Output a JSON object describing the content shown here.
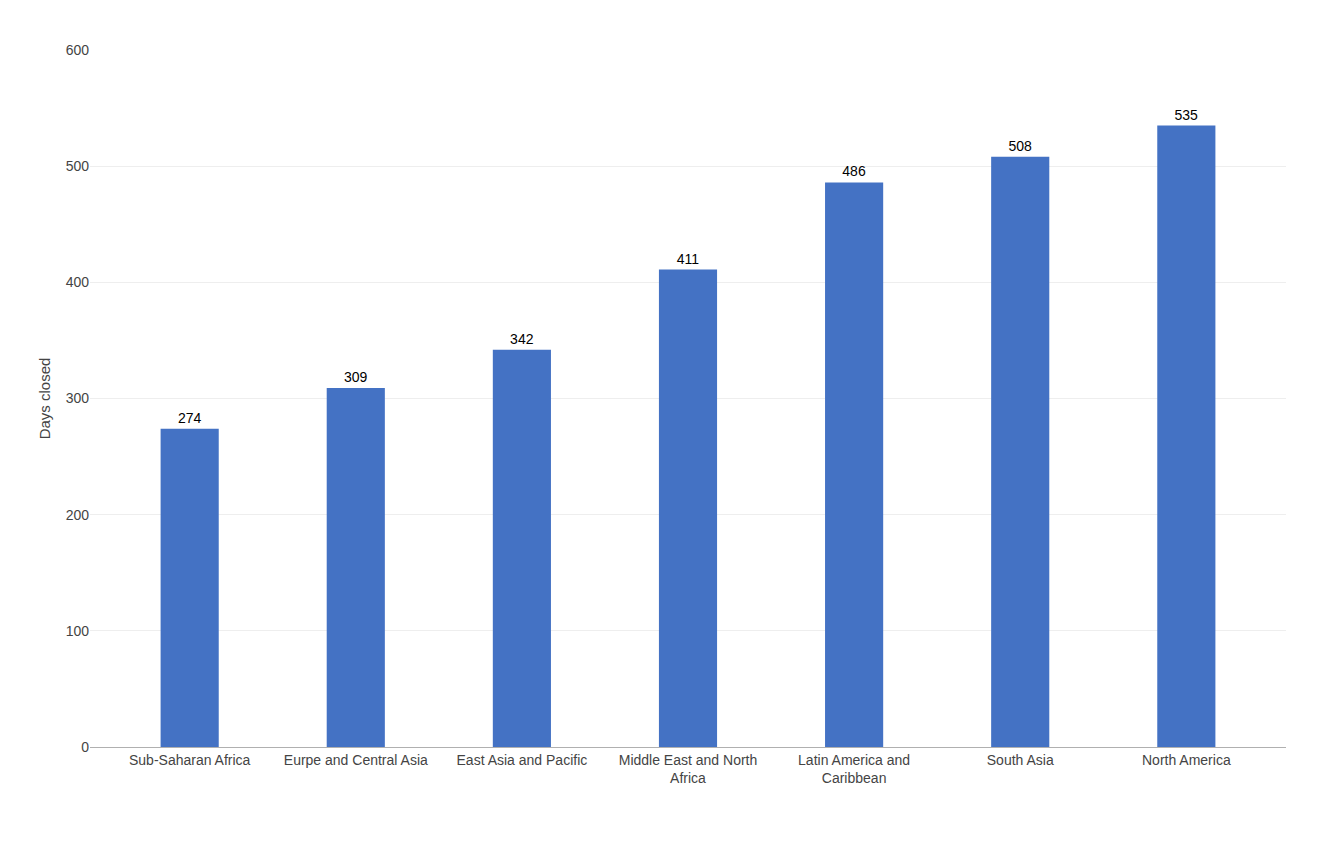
{
  "chart_data": {
    "type": "bar",
    "ylabel": "Days closed",
    "categories": [
      "Sub-Saharan Africa",
      "Eurpe and Central Asia",
      "East Asia and Pacific",
      "Middle East and North\nAfrica",
      "Latin America and\nCaribbean",
      "South Asia",
      "North America"
    ],
    "values": [
      274,
      309,
      342,
      411,
      486,
      508,
      535
    ],
    "color": "#4472C4",
    "ylim": [
      0,
      600
    ],
    "yticks": [
      0,
      100,
      200,
      300,
      400,
      500,
      600
    ],
    "grid": true,
    "data_labels": true
  }
}
